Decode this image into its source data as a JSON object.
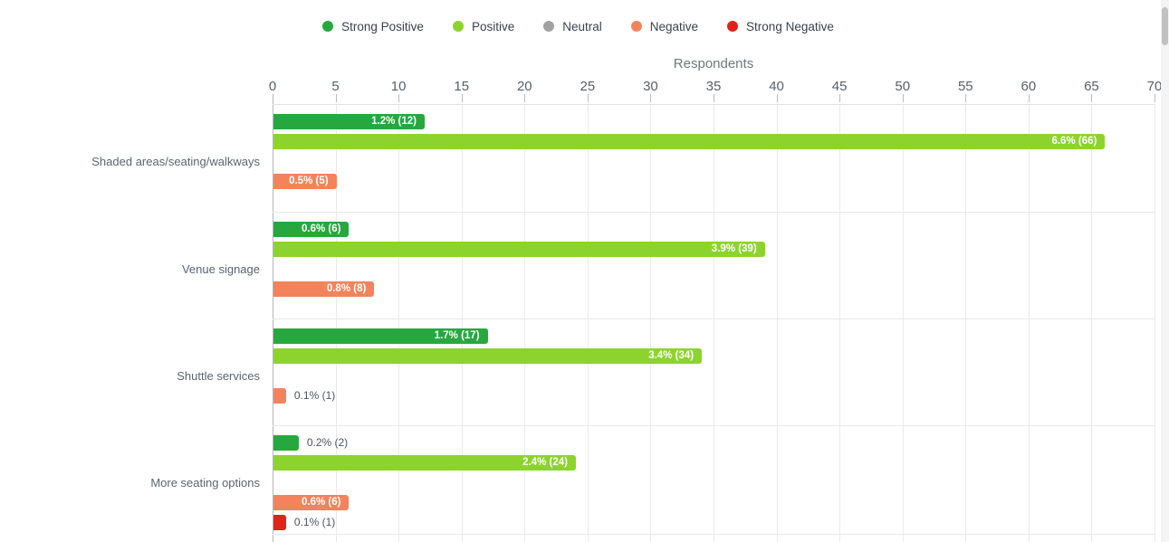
{
  "legend": {
    "items": [
      {
        "label": "Strong Positive",
        "color": "#27a83e",
        "icon": "circle-swatch-icon"
      },
      {
        "label": "Positive",
        "color": "#8cd42d",
        "icon": "circle-swatch-icon"
      },
      {
        "label": "Neutral",
        "color": "#a2a2a2",
        "icon": "circle-swatch-icon"
      },
      {
        "label": "Negative",
        "color": "#f3835d",
        "icon": "circle-swatch-icon"
      },
      {
        "label": "Strong Negative",
        "color": "#e2231a",
        "icon": "circle-swatch-icon"
      }
    ]
  },
  "chart_data": {
    "type": "bar",
    "orientation": "horizontal",
    "title": "",
    "xlabel": "Respondents",
    "ylabel": "",
    "xlim": [
      0,
      70
    ],
    "x_ticks": [
      0,
      5,
      10,
      15,
      20,
      25,
      30,
      35,
      40,
      45,
      50,
      55,
      60,
      65,
      70
    ],
    "grid": true,
    "legend_position": "top-center",
    "categories": [
      "Shaded areas/seating/walkways",
      "Venue signage",
      "Shuttle services",
      "More seating options"
    ],
    "series": [
      {
        "name": "Strong Positive",
        "color": "#27a83e",
        "values": [
          12,
          6,
          17,
          2
        ],
        "labels": [
          "1.2% (12)",
          "0.6% (6)",
          "1.7% (17)",
          "0.2% (2)"
        ]
      },
      {
        "name": "Positive",
        "color": "#8cd42d",
        "values": [
          66,
          39,
          34,
          24
        ],
        "labels": [
          "6.6% (66)",
          "3.9% (39)",
          "3.4% (34)",
          "2.4% (24)"
        ]
      },
      {
        "name": "Neutral",
        "color": "#a2a2a2",
        "values": [
          0,
          0,
          0,
          0
        ],
        "labels": [
          "",
          "",
          "",
          ""
        ]
      },
      {
        "name": "Negative",
        "color": "#f3835d",
        "values": [
          5,
          8,
          1,
          6
        ],
        "labels": [
          "0.5% (5)",
          "0.8% (8)",
          "0.1% (1)",
          "0.6% (6)"
        ]
      },
      {
        "name": "Strong Negative",
        "color": "#e2231a",
        "values": [
          0,
          0,
          0,
          1
        ],
        "labels": [
          "",
          "",
          "",
          "0.1% (1)"
        ]
      }
    ]
  }
}
